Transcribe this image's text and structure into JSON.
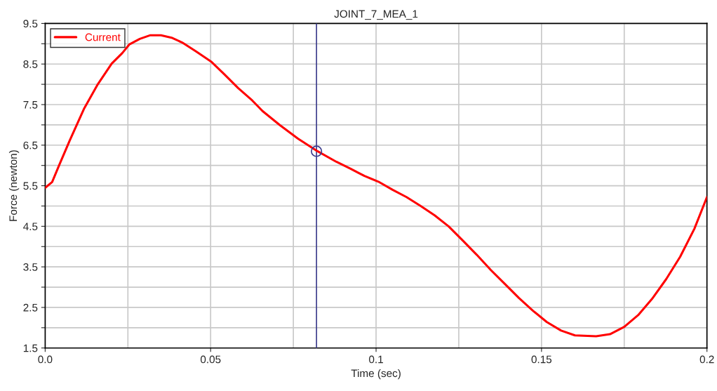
{
  "chart_data": {
    "type": "line",
    "title": "JOINT_7_MEA_1",
    "xlabel": "Time (sec)",
    "ylabel": "Force (newton)",
    "series": [
      {
        "name": "Current",
        "color": "#ff0000",
        "marker": "none",
        "line_style": "solid",
        "x": [
          0,
          0.0021,
          0.0042,
          0.0074,
          0.0117,
          0.0159,
          0.0201,
          0.0233,
          0.0254,
          0.0286,
          0.0318,
          0.035,
          0.0382,
          0.0414,
          0.0456,
          0.0503,
          0.0541,
          0.0583,
          0.0626,
          0.0657,
          0.071,
          0.0764,
          0.0823,
          0.088,
          0.0923,
          0.0965,
          0.1007,
          0.105,
          0.1092,
          0.1135,
          0.1177,
          0.1219,
          0.1262,
          0.1304,
          0.1347,
          0.1389,
          0.1432,
          0.1474,
          0.1516,
          0.1559,
          0.1601,
          0.1665,
          0.1707,
          0.175,
          0.1792,
          0.1834,
          0.1877,
          0.1919,
          0.1962,
          0.2
        ],
        "values": [
          5.45,
          5.59,
          6.0,
          6.61,
          7.39,
          8.0,
          8.51,
          8.77,
          8.98,
          9.12,
          9.21,
          9.21,
          9.15,
          9.03,
          8.81,
          8.55,
          8.25,
          7.91,
          7.6,
          7.34,
          6.99,
          6.66,
          6.35,
          6.09,
          5.92,
          5.74,
          5.6,
          5.4,
          5.22,
          5.0,
          4.77,
          4.5,
          4.15,
          3.8,
          3.42,
          3.08,
          2.73,
          2.42,
          2.14,
          1.93,
          1.81,
          1.79,
          1.84,
          2.02,
          2.31,
          2.71,
          3.2,
          3.75,
          4.44,
          5.22
        ]
      },
      {
        "color": "#3c3c8c",
        "type": "scatter",
        "marker": "circle",
        "x": [
          0.082
        ],
        "values": [
          6.35
        ]
      }
    ],
    "ref_lines": [
      {
        "axis": "x",
        "value": 0.082,
        "color": "#3c3c8c",
        "line_style": "solid"
      }
    ],
    "xlim": [
      0,
      0.2
    ],
    "xticks": [
      {
        "value": 0,
        "label": "0.0"
      },
      {
        "value": 0.025,
        "label": null
      },
      0.05,
      {
        "value": 0.075,
        "label": null
      },
      0.1,
      {
        "value": 0.125,
        "label": null
      },
      0.15,
      {
        "value": 0.175,
        "label": null
      },
      0.2
    ],
    "ylim": [
      1.5,
      9.5
    ],
    "yticks": [
      1.5,
      {
        "value": 2.0,
        "label": null
      },
      2.5,
      {
        "value": 3.0,
        "label": null
      },
      3.5,
      {
        "value": 4.0,
        "label": null
      },
      4.5,
      {
        "value": 5.0,
        "label": null
      },
      5.5,
      {
        "value": 6.0,
        "label": null
      },
      6.5,
      {
        "value": 7.0,
        "label": null
      },
      7.5,
      {
        "value": 8.0,
        "label": null
      },
      8.5,
      {
        "value": 9.0,
        "label": null
      },
      9.5
    ],
    "grid": true,
    "legend": "top left"
  }
}
